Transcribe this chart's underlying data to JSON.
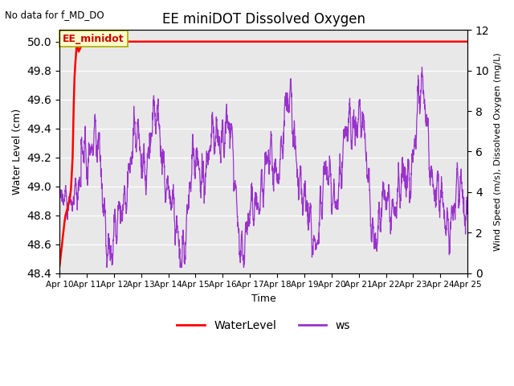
{
  "title": "EE miniDOT Dissolved Oxygen",
  "xlabel": "Time",
  "ylabel_left": "Water Level (cm)",
  "ylabel_right": "Wind Speed (m/s), Dissolved Oxygen (mg/L)",
  "no_data_text": "No data for f_MD_DO",
  "annotation_text": "EE_minidot",
  "ylim_left": [
    48.4,
    50.08
  ],
  "ylim_right": [
    0,
    12
  ],
  "yticks_left": [
    48.4,
    48.6,
    48.8,
    49.0,
    49.2,
    49.4,
    49.6,
    49.8,
    50.0
  ],
  "yticks_right": [
    0,
    2,
    4,
    6,
    8,
    10,
    12
  ],
  "background_color": "#e8e8e8",
  "water_color": "#ff0000",
  "ws_color": "#9932cc",
  "legend_labels": [
    "WaterLevel",
    "ws"
  ],
  "x_tick_labels": [
    "Apr 10",
    "Apr 11",
    "Apr 12",
    "Apr 13",
    "Apr 14",
    "Apr 15",
    "Apr 16",
    "Apr 17",
    "Apr 18",
    "Apr 19",
    "Apr 20",
    "Apr 21",
    "Apr 22",
    "Apr 23",
    "Apr 24",
    "Apr 25"
  ],
  "figwidth": 6.4,
  "figheight": 4.8,
  "dpi": 100
}
